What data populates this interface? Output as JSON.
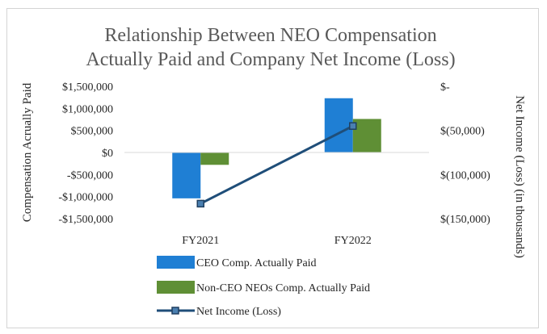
{
  "chart_data": {
    "type": "bar",
    "title": [
      "Relationship Between NEO Compensation",
      "Actually Paid and Company Net Income (Loss)"
    ],
    "categories": [
      "FY2021",
      "FY2022"
    ],
    "ylabel": "Compensation Acrually Paid",
    "y2label": "Net Income (Loss) (in thousands)",
    "ylim": [
      -1500000,
      1500000
    ],
    "yticks": [
      1500000,
      1000000,
      500000,
      0,
      -500000,
      -1000000,
      -1500000
    ],
    "ytick_labels": [
      "$1,500,000",
      "$1,000,000",
      "$500,000",
      "$0",
      "-$500,000",
      "-$1,000,000",
      "-$1,500,000"
    ],
    "y2lim": [
      -150000,
      0
    ],
    "y2ticks": [
      0,
      -50000,
      -100000,
      -150000
    ],
    "y2tick_labels": [
      "$-",
      "$(50,000)",
      "$(100,000)",
      "$(150,000)"
    ],
    "series": [
      {
        "name": "CEO Comp. Actually Paid",
        "kind": "bar",
        "axis": "left",
        "color": "#1f7fd4",
        "values": [
          -1040000,
          1230000
        ]
      },
      {
        "name": "Non-CEO NEOs Comp. Actually Paid",
        "kind": "bar",
        "axis": "left",
        "color": "#5f8f35",
        "values": [
          -280000,
          760000
        ]
      },
      {
        "name": "Net Income (Loss)",
        "kind": "line",
        "axis": "right",
        "color": "#1f4e79",
        "values": [
          -133000,
          -45000
        ]
      }
    ],
    "legend_position": "bottom",
    "grid": false
  }
}
